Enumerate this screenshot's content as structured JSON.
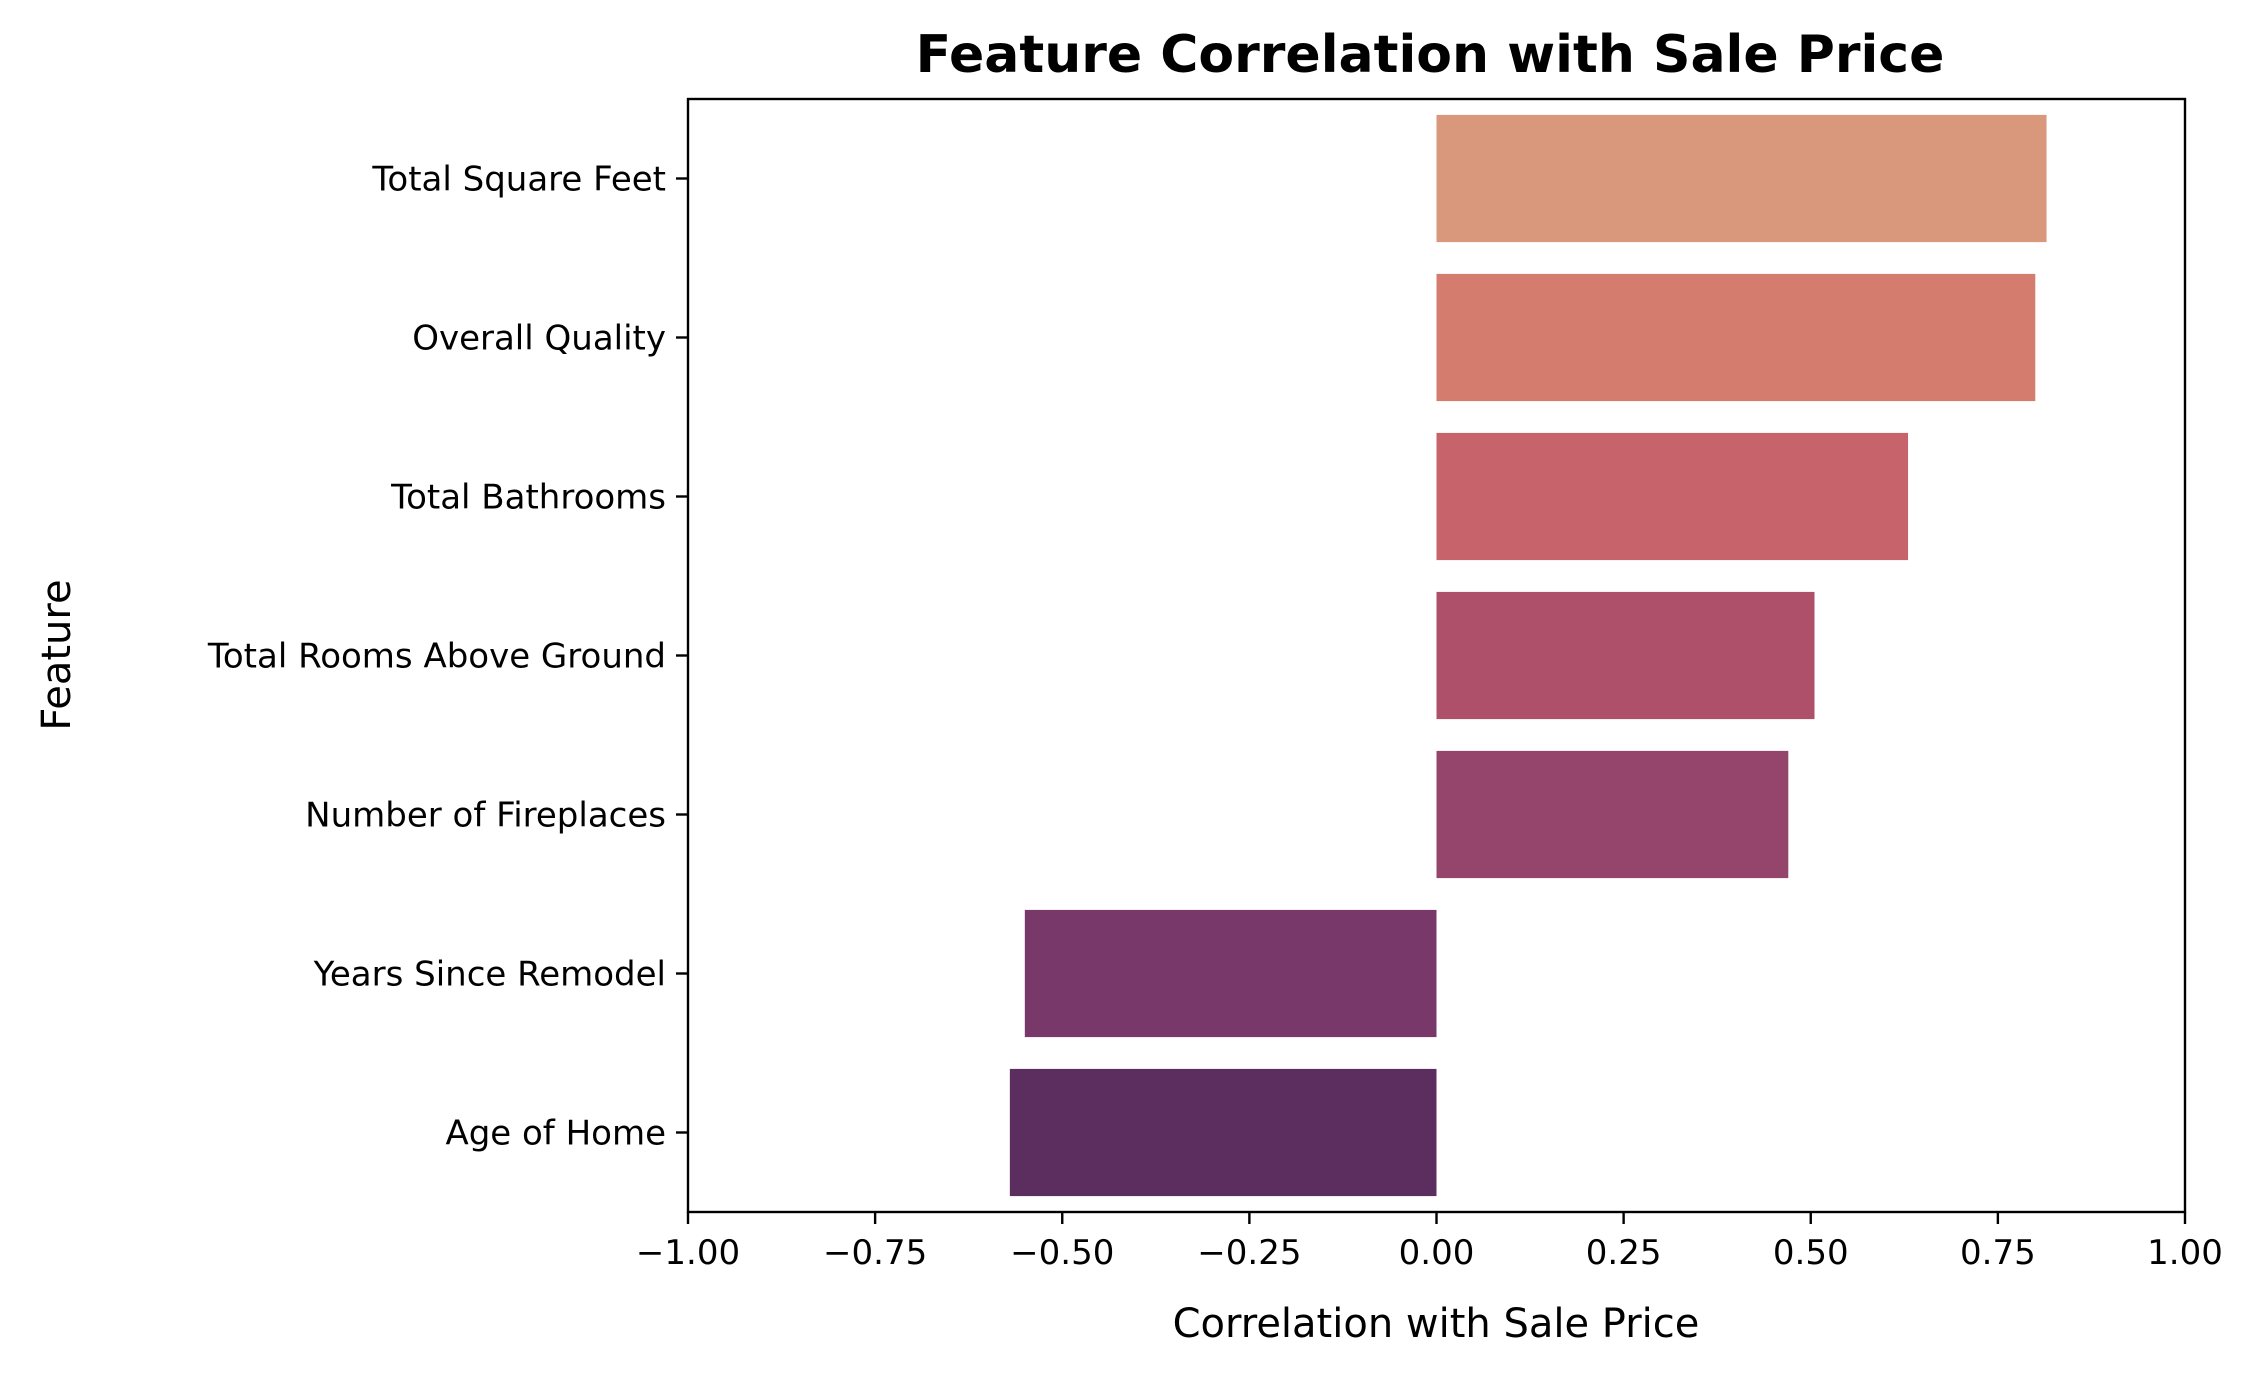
{
  "chart_data": {
    "type": "bar",
    "orientation": "horizontal",
    "title": "Feature Correlation with Sale Price",
    "xlabel": "Correlation with Sale Price",
    "ylabel": "Feature",
    "categories": [
      "Total Square Feet",
      "Overall Quality",
      "Total Bathrooms",
      "Total Rooms Above Ground",
      "Number of Fireplaces",
      "Years Since Remodel",
      "Age of Home"
    ],
    "values": [
      0.815,
      0.8,
      0.63,
      0.505,
      0.47,
      -0.55,
      -0.57
    ],
    "colors": [
      "#d9977b",
      "#d47c6d",
      "#c7636b",
      "#ae506a",
      "#95446b",
      "#78386a",
      "#5c2e5f"
    ],
    "xlim": [
      -1.0,
      1.0
    ],
    "xticks": [
      "−1.00",
      "−0.75",
      "−0.50",
      "−0.25",
      "0.00",
      "0.25",
      "0.50",
      "0.75",
      "1.00"
    ],
    "grid": false,
    "legend": "none"
  }
}
